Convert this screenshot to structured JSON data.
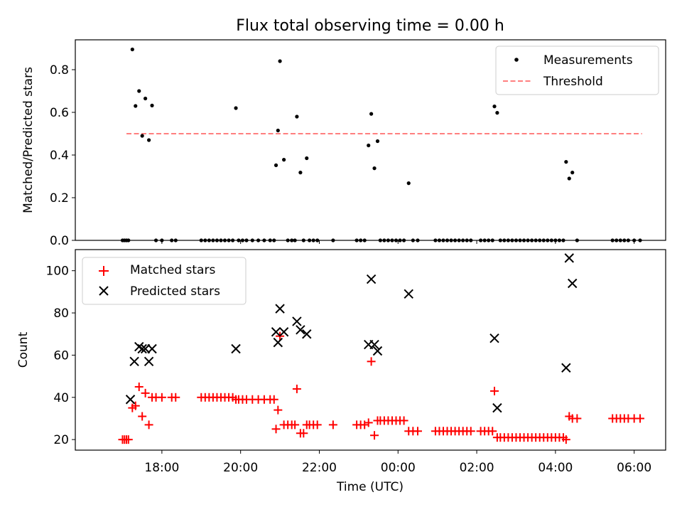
{
  "title": "Flux total observing time = 0.00 h",
  "chart_data": [
    {
      "type": "scatter",
      "ylabel": "Matched/Predicted stars",
      "xlabel": "",
      "xlim_hours": [
        15.8,
        30.8
      ],
      "ylim": [
        0,
        0.94
      ],
      "yticks": [
        0.0,
        0.2,
        0.4,
        0.6,
        0.8
      ],
      "ytick_labels": [
        "0.0",
        "0.2",
        "0.4",
        "0.6",
        "0.8"
      ],
      "legend": {
        "position": "top-right",
        "entries": [
          "Measurements",
          "Threshold"
        ]
      },
      "threshold": {
        "name": "Threshold",
        "value": 0.5,
        "x_start": 17.1,
        "x_end": 30.2,
        "color": "#ff7f7f"
      },
      "series": [
        {
          "name": "Measurements",
          "color": "#000000",
          "points": [
            [
              17.0,
              0
            ],
            [
              17.05,
              0
            ],
            [
              17.1,
              0
            ],
            [
              17.15,
              0
            ],
            [
              17.25,
              0.895
            ],
            [
              17.33,
              0.63
            ],
            [
              17.42,
              0.7
            ],
            [
              17.5,
              0.49
            ],
            [
              17.58,
              0.665
            ],
            [
              17.67,
              0.47
            ],
            [
              17.75,
              0.632
            ],
            [
              17.85,
              0
            ],
            [
              18.0,
              0
            ],
            [
              18.25,
              0
            ],
            [
              18.35,
              0
            ],
            [
              19.0,
              0
            ],
            [
              19.1,
              0
            ],
            [
              19.2,
              0
            ],
            [
              19.3,
              0
            ],
            [
              19.4,
              0
            ],
            [
              19.5,
              0
            ],
            [
              19.6,
              0
            ],
            [
              19.7,
              0
            ],
            [
              19.8,
              0
            ],
            [
              19.88,
              0.62
            ],
            [
              19.95,
              0
            ],
            [
              20.05,
              0
            ],
            [
              20.15,
              0
            ],
            [
              20.3,
              0
            ],
            [
              20.45,
              0
            ],
            [
              20.6,
              0
            ],
            [
              20.75,
              0
            ],
            [
              20.85,
              0
            ],
            [
              20.9,
              0.352
            ],
            [
              20.95,
              0.515
            ],
            [
              21.0,
              0.84
            ],
            [
              21.1,
              0.378
            ],
            [
              21.2,
              0
            ],
            [
              21.3,
              0
            ],
            [
              21.38,
              0
            ],
            [
              21.43,
              0.58
            ],
            [
              21.52,
              0.318
            ],
            [
              21.6,
              0
            ],
            [
              21.68,
              0.385
            ],
            [
              21.75,
              0
            ],
            [
              21.85,
              0
            ],
            [
              21.95,
              0
            ],
            [
              22.35,
              0
            ],
            [
              22.95,
              0
            ],
            [
              23.05,
              0
            ],
            [
              23.15,
              0
            ],
            [
              23.25,
              0.445
            ],
            [
              23.32,
              0.593
            ],
            [
              23.4,
              0.338
            ],
            [
              23.48,
              0.465
            ],
            [
              23.55,
              0
            ],
            [
              23.65,
              0
            ],
            [
              23.75,
              0
            ],
            [
              23.85,
              0
            ],
            [
              23.95,
              0
            ],
            [
              24.05,
              0
            ],
            [
              24.15,
              0
            ],
            [
              24.27,
              0.268
            ],
            [
              24.38,
              0
            ],
            [
              24.5,
              0
            ],
            [
              24.95,
              0
            ],
            [
              25.05,
              0
            ],
            [
              25.15,
              0
            ],
            [
              25.25,
              0
            ],
            [
              25.35,
              0
            ],
            [
              25.45,
              0
            ],
            [
              25.55,
              0
            ],
            [
              25.65,
              0
            ],
            [
              25.75,
              0
            ],
            [
              25.85,
              0
            ],
            [
              26.1,
              0
            ],
            [
              26.2,
              0
            ],
            [
              26.3,
              0
            ],
            [
              26.4,
              0
            ],
            [
              26.45,
              0.628
            ],
            [
              26.52,
              0.598
            ],
            [
              26.6,
              0
            ],
            [
              26.7,
              0
            ],
            [
              26.8,
              0
            ],
            [
              26.9,
              0
            ],
            [
              27.0,
              0
            ],
            [
              27.1,
              0
            ],
            [
              27.2,
              0
            ],
            [
              27.3,
              0
            ],
            [
              27.4,
              0
            ],
            [
              27.5,
              0
            ],
            [
              27.6,
              0
            ],
            [
              27.7,
              0
            ],
            [
              27.8,
              0
            ],
            [
              27.9,
              0
            ],
            [
              28.0,
              0
            ],
            [
              28.1,
              0
            ],
            [
              28.2,
              0
            ],
            [
              28.27,
              0.368
            ],
            [
              28.35,
              0.29
            ],
            [
              28.43,
              0.318
            ],
            [
              28.55,
              0
            ],
            [
              29.45,
              0
            ],
            [
              29.55,
              0
            ],
            [
              29.65,
              0
            ],
            [
              29.75,
              0
            ],
            [
              29.85,
              0
            ],
            [
              30.0,
              0
            ],
            [
              30.15,
              0
            ]
          ]
        }
      ]
    },
    {
      "type": "scatter",
      "ylabel": "Count",
      "xlabel": "Time (UTC)",
      "xlim_hours": [
        15.8,
        30.8
      ],
      "ylim": [
        15,
        110
      ],
      "yticks": [
        20,
        40,
        60,
        80,
        100
      ],
      "ytick_labels": [
        "20",
        "40",
        "60",
        "80",
        "100"
      ],
      "xticks_hours": [
        18,
        20,
        22,
        24,
        26,
        28,
        30
      ],
      "xtick_labels": [
        "18:00",
        "20:00",
        "22:00",
        "00:00",
        "02:00",
        "04:00",
        "06:00"
      ],
      "legend": {
        "position": "top-left",
        "entries": [
          "Matched stars",
          "Predicted stars"
        ]
      },
      "series": [
        {
          "name": "Matched stars",
          "marker": "plus",
          "color": "#ff0000",
          "points": [
            [
              17.0,
              20
            ],
            [
              17.05,
              20
            ],
            [
              17.1,
              20
            ],
            [
              17.15,
              20
            ],
            [
              17.25,
              35
            ],
            [
              17.33,
              36
            ],
            [
              17.42,
              45
            ],
            [
              17.5,
              31
            ],
            [
              17.58,
              42
            ],
            [
              17.67,
              27
            ],
            [
              17.75,
              40
            ],
            [
              17.85,
              40
            ],
            [
              18.0,
              40
            ],
            [
              18.25,
              40
            ],
            [
              18.35,
              40
            ],
            [
              19.0,
              40
            ],
            [
              19.1,
              40
            ],
            [
              19.2,
              40
            ],
            [
              19.3,
              40
            ],
            [
              19.4,
              40
            ],
            [
              19.5,
              40
            ],
            [
              19.6,
              40
            ],
            [
              19.7,
              40
            ],
            [
              19.8,
              40
            ],
            [
              19.88,
              39
            ],
            [
              19.95,
              39
            ],
            [
              20.05,
              39
            ],
            [
              20.15,
              39
            ],
            [
              20.3,
              39
            ],
            [
              20.45,
              39
            ],
            [
              20.6,
              39
            ],
            [
              20.75,
              39
            ],
            [
              20.85,
              39
            ],
            [
              20.9,
              25
            ],
            [
              20.95,
              34
            ],
            [
              21.0,
              69
            ],
            [
              21.1,
              27
            ],
            [
              21.2,
              27
            ],
            [
              21.3,
              27
            ],
            [
              21.38,
              27
            ],
            [
              21.43,
              44
            ],
            [
              21.52,
              23
            ],
            [
              21.6,
              23
            ],
            [
              21.68,
              27
            ],
            [
              21.75,
              27
            ],
            [
              21.85,
              27
            ],
            [
              21.95,
              27
            ],
            [
              22.35,
              27
            ],
            [
              22.95,
              27
            ],
            [
              23.05,
              27
            ],
            [
              23.15,
              27
            ],
            [
              23.25,
              28
            ],
            [
              23.32,
              57
            ],
            [
              23.4,
              22
            ],
            [
              23.48,
              29
            ],
            [
              23.55,
              29
            ],
            [
              23.65,
              29
            ],
            [
              23.75,
              29
            ],
            [
              23.85,
              29
            ],
            [
              23.95,
              29
            ],
            [
              24.05,
              29
            ],
            [
              24.15,
              29
            ],
            [
              24.27,
              24
            ],
            [
              24.38,
              24
            ],
            [
              24.5,
              24
            ],
            [
              24.95,
              24
            ],
            [
              25.05,
              24
            ],
            [
              25.15,
              24
            ],
            [
              25.25,
              24
            ],
            [
              25.35,
              24
            ],
            [
              25.45,
              24
            ],
            [
              25.55,
              24
            ],
            [
              25.65,
              24
            ],
            [
              25.75,
              24
            ],
            [
              25.85,
              24
            ],
            [
              26.1,
              24
            ],
            [
              26.2,
              24
            ],
            [
              26.3,
              24
            ],
            [
              26.4,
              24
            ],
            [
              26.45,
              43
            ],
            [
              26.52,
              21
            ],
            [
              26.6,
              21
            ],
            [
              26.7,
              21
            ],
            [
              26.8,
              21
            ],
            [
              26.9,
              21
            ],
            [
              27.0,
              21
            ],
            [
              27.1,
              21
            ],
            [
              27.2,
              21
            ],
            [
              27.3,
              21
            ],
            [
              27.4,
              21
            ],
            [
              27.5,
              21
            ],
            [
              27.6,
              21
            ],
            [
              27.7,
              21
            ],
            [
              27.8,
              21
            ],
            [
              27.9,
              21
            ],
            [
              28.0,
              21
            ],
            [
              28.1,
              21
            ],
            [
              28.2,
              21
            ],
            [
              28.27,
              20
            ],
            [
              28.35,
              31
            ],
            [
              28.43,
              30
            ],
            [
              28.55,
              30
            ],
            [
              29.45,
              30
            ],
            [
              29.55,
              30
            ],
            [
              29.65,
              30
            ],
            [
              29.75,
              30
            ],
            [
              29.85,
              30
            ],
            [
              30.0,
              30
            ],
            [
              30.15,
              30
            ]
          ]
        },
        {
          "name": "Predicted stars",
          "marker": "x",
          "color": "#000000",
          "points": [
            [
              17.2,
              39
            ],
            [
              17.3,
              57
            ],
            [
              17.42,
              64
            ],
            [
              17.5,
              63
            ],
            [
              17.58,
              63
            ],
            [
              17.67,
              57
            ],
            [
              17.75,
              63
            ],
            [
              19.88,
              63
            ],
            [
              20.9,
              71
            ],
            [
              20.95,
              66
            ],
            [
              21.0,
              82
            ],
            [
              21.1,
              71
            ],
            [
              21.43,
              76
            ],
            [
              21.52,
              72
            ],
            [
              21.68,
              70
            ],
            [
              23.25,
              65
            ],
            [
              23.32,
              96
            ],
            [
              23.4,
              65
            ],
            [
              23.48,
              62
            ],
            [
              24.27,
              89
            ],
            [
              26.45,
              68
            ],
            [
              26.52,
              35
            ],
            [
              28.27,
              54
            ],
            [
              28.35,
              106
            ],
            [
              28.43,
              94
            ]
          ]
        }
      ]
    }
  ]
}
